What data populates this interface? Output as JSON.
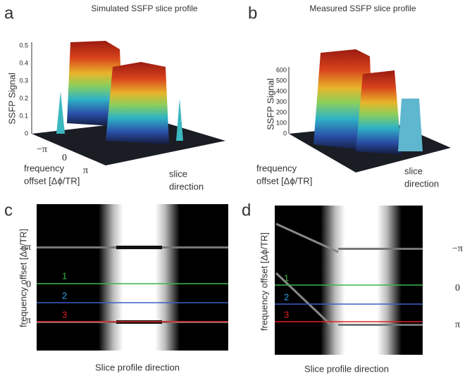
{
  "a": {
    "letter": "a",
    "title": "Simulated SSFP slice profile",
    "ylabel": "SSFP Signal",
    "yticks": [
      "0.5",
      "0.4",
      "0.3",
      "0.2",
      "0.1",
      "0"
    ],
    "xticks": [
      "−π",
      "0",
      "π"
    ],
    "xlabel": [
      "frequency",
      "offset [Δϕ/TR]"
    ],
    "zlabel": [
      "slice",
      "direction"
    ]
  },
  "b": {
    "letter": "b",
    "title": "Measured SSFP slice profile",
    "ylabel": "SSFP Signal",
    "yticks": [
      "600",
      "500",
      "400",
      "300",
      "200",
      "100",
      "0"
    ],
    "xlabel": [
      "frequency",
      "offset [Δϕ/TR]"
    ],
    "zlabel": [
      "slice",
      "direction"
    ]
  },
  "c": {
    "letter": "c",
    "ylabel": "frequency offset [Δϕ/TR]",
    "yticks": [
      "−π",
      "0",
      "π"
    ],
    "lines": [
      "1",
      "2",
      "3"
    ],
    "xlabel": "Slice profile direction"
  },
  "d": {
    "letter": "d",
    "ylabel": "frequency offset [Δϕ/TR]",
    "yticks": [
      "−π",
      "0",
      "π"
    ],
    "lines": [
      "1",
      "2",
      "3"
    ],
    "xlabel": "Slice profile direction"
  }
}
